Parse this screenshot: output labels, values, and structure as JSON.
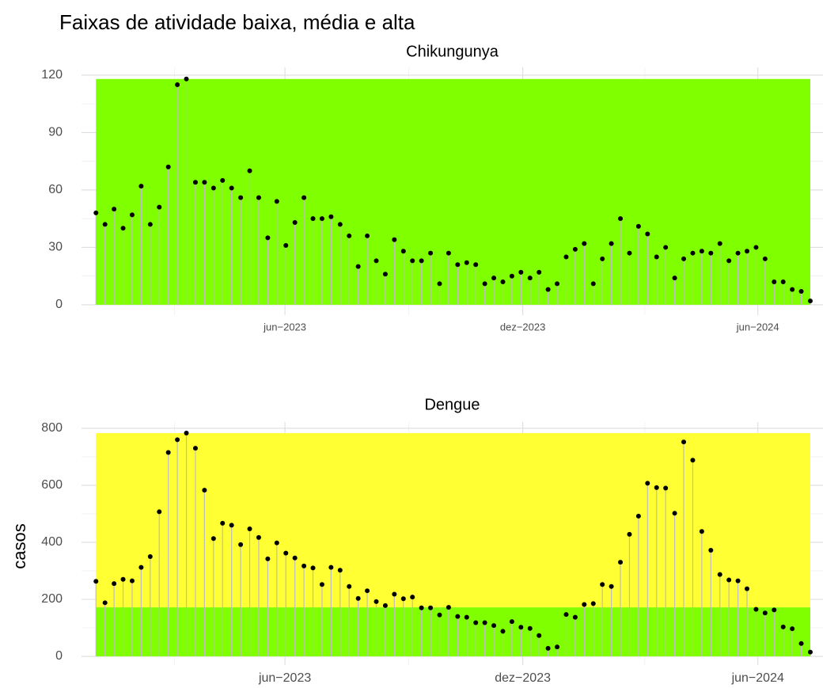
{
  "title": "Faixas de atividade baixa, média e alta",
  "y_label": "casos",
  "chart_data": [
    {
      "type": "lollipop",
      "title": "Chikungunya",
      "x": [
        0,
        1,
        2,
        3,
        4,
        5,
        6,
        7,
        8,
        9,
        10,
        11,
        12,
        13,
        14,
        15,
        16,
        17,
        18,
        19,
        20,
        21,
        22,
        23,
        24,
        25,
        26,
        27,
        28,
        29,
        30,
        31,
        32,
        33,
        34,
        35,
        36,
        37,
        38,
        39,
        40,
        41,
        42,
        43,
        44,
        45,
        46,
        47,
        48,
        49,
        50,
        51,
        52,
        53,
        54,
        55,
        56,
        57,
        58,
        59,
        60,
        61,
        62,
        63,
        64,
        65,
        66,
        67,
        68,
        69,
        70,
        71,
        72,
        73,
        74,
        75,
        76,
        77,
        78,
        79
      ],
      "values": [
        48,
        42,
        50,
        40,
        47,
        62,
        42,
        51,
        72,
        115,
        118,
        64,
        64,
        61,
        65,
        61,
        56,
        70,
        56,
        35,
        54,
        31,
        43,
        56,
        45,
        45,
        46,
        42,
        36,
        20,
        36,
        23,
        16,
        34,
        28,
        23,
        23,
        27,
        11,
        27,
        21,
        22,
        21,
        11,
        14,
        12,
        15,
        17,
        14,
        17,
        8,
        11,
        25,
        29,
        32,
        11,
        24,
        32,
        45,
        27,
        41,
        37,
        25,
        30,
        14,
        24,
        27,
        28,
        27,
        32,
        23,
        27,
        28,
        30,
        24,
        12,
        12,
        8,
        7,
        2
      ],
      "bands": [
        {
          "from": 0,
          "to": 118,
          "color": "#7fff00"
        }
      ],
      "xlim": [
        -1.6,
        80.4
      ],
      "xticks": [
        {
          "value": 20.9,
          "label": "jun−2023"
        },
        {
          "value": 47.2,
          "label": "dez−2023"
        },
        {
          "value": 73.2,
          "label": "jun−2024"
        }
      ],
      "xminor": [
        8.7,
        34.6,
        60.7
      ],
      "ylim": [
        -5.4,
        124.1
      ],
      "yticks": [
        0,
        30,
        60,
        90,
        120
      ],
      "yminor": [
        15,
        45,
        75,
        105
      ],
      "grid": true
    },
    {
      "type": "lollipop",
      "title": "Dengue",
      "x": [
        0,
        1,
        2,
        3,
        4,
        5,
        6,
        7,
        8,
        9,
        10,
        11,
        12,
        13,
        14,
        15,
        16,
        17,
        18,
        19,
        20,
        21,
        22,
        23,
        24,
        25,
        26,
        27,
        28,
        29,
        30,
        31,
        32,
        33,
        34,
        35,
        36,
        37,
        38,
        39,
        40,
        41,
        42,
        43,
        44,
        45,
        46,
        47,
        48,
        49,
        50,
        51,
        52,
        53,
        54,
        55,
        56,
        57,
        58,
        59,
        60,
        61,
        62,
        63,
        64,
        65,
        66,
        67,
        68,
        69,
        70,
        71,
        72,
        73,
        74,
        75,
        76,
        77,
        78,
        79
      ],
      "values": [
        263,
        188,
        255,
        270,
        265,
        312,
        350,
        507,
        715,
        760,
        783,
        730,
        583,
        413,
        467,
        460,
        392,
        447,
        417,
        342,
        398,
        362,
        345,
        317,
        310,
        252,
        312,
        302,
        245,
        203,
        230,
        192,
        178,
        218,
        202,
        208,
        170,
        170,
        145,
        172,
        140,
        137,
        118,
        118,
        108,
        88,
        122,
        102,
        98,
        73,
        28,
        33,
        147,
        137,
        182,
        185,
        252,
        245,
        330,
        428,
        492,
        607,
        592,
        590,
        502,
        752,
        688,
        438,
        372,
        287,
        268,
        265,
        237,
        165,
        152,
        163,
        103,
        97,
        45,
        15
      ],
      "bands": [
        {
          "from": 0,
          "to": 172,
          "color": "#7fff00"
        },
        {
          "from": 172,
          "to": 783,
          "color": "#ffff33"
        }
      ],
      "xlim": [
        -1.6,
        80.4
      ],
      "xticks": [
        {
          "value": 20.9,
          "label": "jun−2023"
        },
        {
          "value": 47.2,
          "label": "dez−2023"
        },
        {
          "value": 73.2,
          "label": "jun−2024"
        }
      ],
      "xminor": [
        8.7,
        34.6,
        60.7
      ],
      "ylim": [
        -30.5,
        822
      ],
      "yticks": [
        0,
        200,
        400,
        600,
        800
      ],
      "yminor": [
        100,
        300,
        500,
        700
      ],
      "grid": true
    }
  ]
}
